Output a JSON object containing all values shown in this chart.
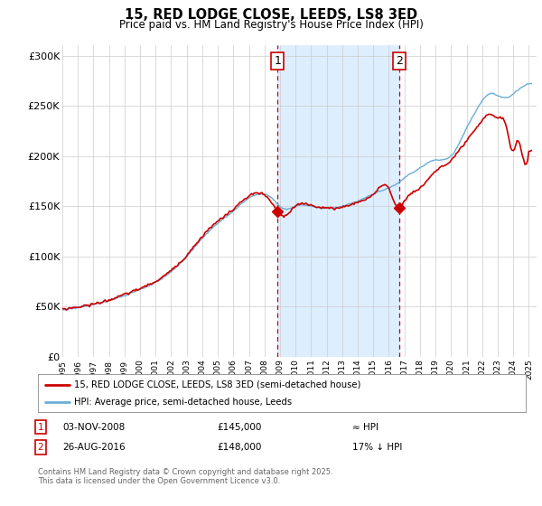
{
  "title": "15, RED LODGE CLOSE, LEEDS, LS8 3ED",
  "subtitle": "Price paid vs. HM Land Registry's House Price Index (HPI)",
  "footer": "Contains HM Land Registry data © Crown copyright and database right 2025.\nThis data is licensed under the Open Government Licence v3.0.",
  "legend_line1": "15, RED LODGE CLOSE, LEEDS, LS8 3ED (semi-detached house)",
  "legend_line2": "HPI: Average price, semi-detached house, Leeds",
  "annotation1": {
    "num": "1",
    "date": "03-NOV-2008",
    "price": "£145,000",
    "rel": "≈ HPI"
  },
  "annotation2": {
    "num": "2",
    "date": "26-AUG-2016",
    "price": "£148,000",
    "rel": "17% ↓ HPI"
  },
  "ylim": [
    0,
    310000
  ],
  "yticks": [
    0,
    50000,
    100000,
    150000,
    200000,
    250000,
    300000
  ],
  "ytick_labels": [
    "£0",
    "£50K",
    "£100K",
    "£150K",
    "£200K",
    "£250K",
    "£300K"
  ],
  "red_color": "#cc0000",
  "blue_color": "#6baed6",
  "bg_color": "#ddeeff",
  "marker1_x": 2008.84,
  "marker2_x": 2016.65,
  "xmin": 1995.0,
  "xmax": 2025.5
}
